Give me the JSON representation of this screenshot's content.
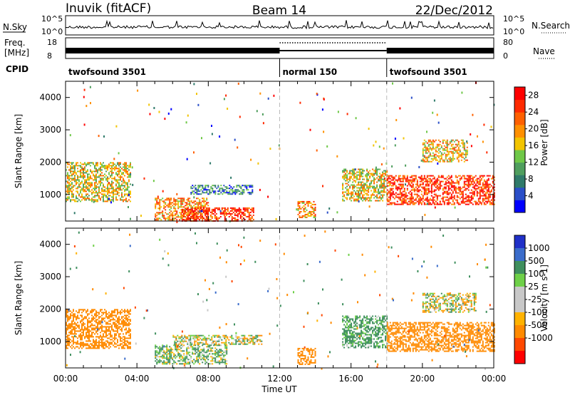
{
  "header": {
    "station": "Inuvik (fitACF)",
    "beam": "Beam 14",
    "date": "22/Dec/2012"
  },
  "top_panels": {
    "nsky_label": "N.Sky",
    "nsky_ticks": [
      "10^5",
      "10^0"
    ],
    "nsearch_label": "N.Search",
    "freq_label_line1": "Freq.",
    "freq_label_line2": "[MHz]",
    "freq_ticks": [
      "18",
      "8"
    ],
    "nave_label": "Nave",
    "nave_ticks": [
      "80",
      "0"
    ],
    "cpid_label": "CPID",
    "cpid_segments": [
      {
        "label": "twofsound 3501",
        "start_hour": 0,
        "end_hour": 12
      },
      {
        "label": "normal 150",
        "start_hour": 12,
        "end_hour": 18
      },
      {
        "label": "twofsound 3501",
        "start_hour": 18,
        "end_hour": 24
      }
    ]
  },
  "colors": {
    "power_scale": [
      "#0000ff",
      "#2a4ec8",
      "#2f7a6a",
      "#4f9e5e",
      "#6fc848",
      "#f2c400",
      "#ff9000",
      "#ff6000",
      "#ff2a00",
      "#ff0000"
    ],
    "velocity_scale": [
      "#ff0000",
      "#ff4800",
      "#ff8a00",
      "#ffb200",
      "#c8c8c8",
      "#c8c8c8",
      "#6ed048",
      "#3f8f5e",
      "#3a6ccb",
      "#2030c8"
    ]
  },
  "chart_data": [
    {
      "type": "heatmap",
      "quantity": "Power",
      "xlabel": "",
      "ylabel": "Slant Range [km]",
      "xlim_hours": [
        0,
        24
      ],
      "ylim_km": [
        180,
        4500
      ],
      "yticks": [
        1000,
        2000,
        3000,
        4000
      ],
      "colorbar": {
        "label": "Power [dB]",
        "ticks": [
          "4",
          "8",
          "12",
          "16",
          "20",
          "24",
          "28"
        ],
        "range": [
          0,
          30
        ]
      },
      "dashed_lines_hours": [
        12,
        18
      ],
      "echo_regions": [
        {
          "start_hour": 0.0,
          "end_hour": 3.6,
          "min_km": 800,
          "max_km": 2000,
          "power_db": 16
        },
        {
          "start_hour": 5.0,
          "end_hour": 8.0,
          "min_km": 200,
          "max_km": 900,
          "power_db": 20
        },
        {
          "start_hour": 6.5,
          "end_hour": 10.5,
          "min_km": 200,
          "max_km": 600,
          "power_db": 26
        },
        {
          "start_hour": 7.0,
          "end_hour": 10.5,
          "min_km": 1000,
          "max_km": 1300,
          "power_db": 8
        },
        {
          "start_hour": 13.0,
          "end_hour": 14.0,
          "min_km": 300,
          "max_km": 800,
          "power_db": 20
        },
        {
          "start_hour": 15.5,
          "end_hour": 18.0,
          "min_km": 800,
          "max_km": 1800,
          "power_db": 16
        },
        {
          "start_hour": 18.0,
          "end_hour": 24.0,
          "min_km": 700,
          "max_km": 1600,
          "power_db": 26
        },
        {
          "start_hour": 20.0,
          "end_hour": 22.5,
          "min_km": 2000,
          "max_km": 2700,
          "power_db": 18
        }
      ]
    },
    {
      "type": "heatmap",
      "quantity": "Velocity",
      "xlabel": "Time UT",
      "ylabel": "Slant Range [km]",
      "xticks": [
        "00:00",
        "04:00",
        "08:00",
        "12:00",
        "16:00",
        "20:00",
        "00:00"
      ],
      "xtick_hours": [
        0,
        4,
        8,
        12,
        16,
        20,
        24
      ],
      "xlim_hours": [
        0,
        24
      ],
      "ylim_km": [
        180,
        4500
      ],
      "yticks": [
        1000,
        2000,
        3000,
        4000
      ],
      "colorbar": {
        "label": "Velocity [m s-1]",
        "ticks": [
          "1000",
          "500",
          "100",
          "25",
          "-25",
          "-100",
          "-500",
          "-1000"
        ]
      },
      "dashed_lines_hours": [
        12,
        18
      ],
      "echo_regions": [
        {
          "start_hour": 0.0,
          "end_hour": 3.6,
          "min_km": 800,
          "max_km": 2000,
          "velocity": -300
        },
        {
          "start_hour": 5.0,
          "end_hour": 9.0,
          "min_km": 300,
          "max_km": 900,
          "velocity": 100
        },
        {
          "start_hour": 6.0,
          "end_hour": 11.0,
          "min_km": 900,
          "max_km": 1200,
          "velocity": 0
        },
        {
          "start_hour": 13.0,
          "end_hour": 14.0,
          "min_km": 300,
          "max_km": 800,
          "velocity": -300
        },
        {
          "start_hour": 15.5,
          "end_hour": 18.0,
          "min_km": 800,
          "max_km": 1800,
          "velocity": 200
        },
        {
          "start_hour": 18.0,
          "end_hour": 24.0,
          "min_km": 700,
          "max_km": 1600,
          "velocity": -300
        },
        {
          "start_hour": 20.0,
          "end_hour": 23.0,
          "min_km": 1900,
          "max_km": 2500,
          "velocity": 0
        }
      ]
    }
  ]
}
